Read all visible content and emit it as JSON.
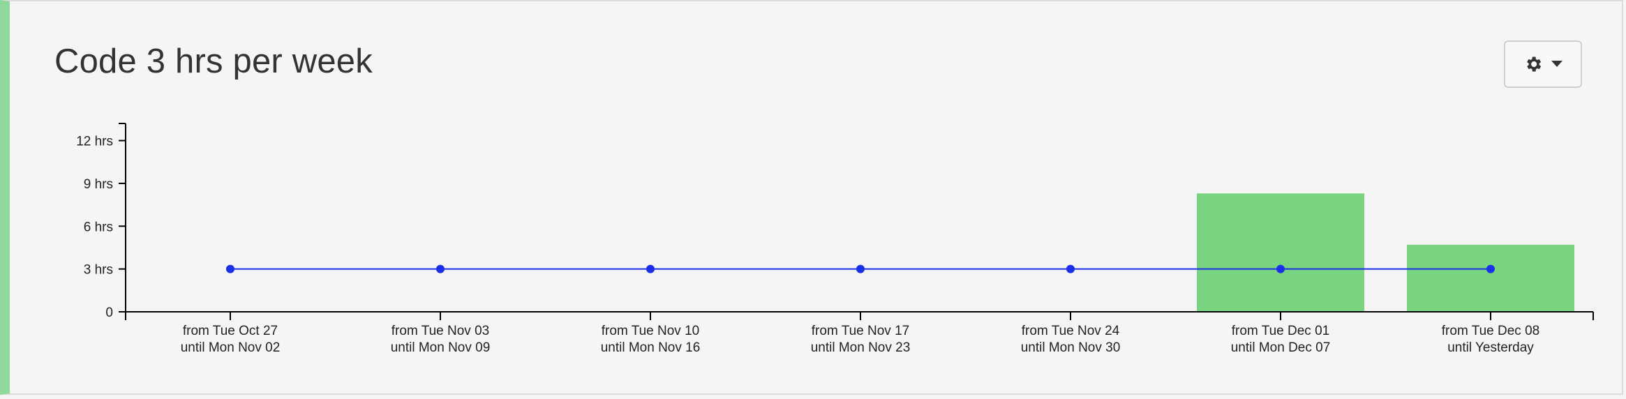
{
  "header": {
    "title": "Code 3 hrs per week"
  },
  "toolbar": {
    "settings_icon": "gear-icon",
    "dropdown_icon": "caret-down-icon"
  },
  "colors": {
    "bar": "#78d480",
    "goal": "#1a2fe6",
    "accent_border": "#8fd99a"
  },
  "chart_data": {
    "type": "bar",
    "categories": [
      [
        "from Tue Oct 27",
        "until Mon Nov 02"
      ],
      [
        "from Tue Nov 03",
        "until Mon Nov 09"
      ],
      [
        "from Tue Nov 10",
        "until Mon Nov 16"
      ],
      [
        "from Tue Nov 17",
        "until Mon Nov 23"
      ],
      [
        "from Tue Nov 24",
        "until Mon Nov 30"
      ],
      [
        "from Tue Dec 01",
        "until Mon Dec 07"
      ],
      [
        "from Tue Dec 08",
        "until Yesterday"
      ]
    ],
    "series": [
      {
        "type": "bar",
        "values": [
          0,
          0,
          0,
          0,
          0,
          8.3,
          4.7
        ]
      },
      {
        "type": "line",
        "values": [
          3,
          3,
          3,
          3,
          3,
          3,
          3
        ]
      }
    ],
    "yticks": [
      {
        "value": 0,
        "label": "0"
      },
      {
        "value": 3,
        "label": "3 hrs"
      },
      {
        "value": 6,
        "label": "6 hrs"
      },
      {
        "value": 9,
        "label": "9 hrs"
      },
      {
        "value": 12,
        "label": "12 hrs"
      }
    ],
    "ylim": [
      0,
      13.2
    ],
    "grid": false
  }
}
